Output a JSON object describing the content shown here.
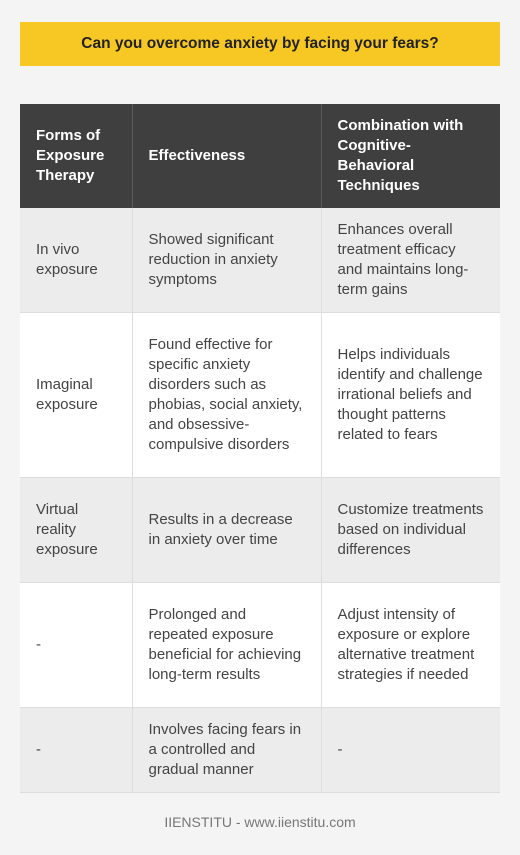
{
  "title": "Can you overcome anxiety by facing your fears?",
  "table": {
    "headers": [
      "Forms of Exposure Therapy",
      "Effectiveness",
      "Combination with Cognitive-Behavioral Techniques"
    ],
    "rows": [
      [
        "In vivo exposure",
        "Showed significant reduction in anxiety symptoms",
        "Enhances overall treatment efficacy and maintains long-term gains"
      ],
      [
        "Imaginal exposure",
        "Found effective for specific anxiety disorders such as phobias, social anxiety, and obsessive-compulsive disorders",
        "Helps individuals identify and challenge irrational beliefs and thought patterns related to fears"
      ],
      [
        "Virtual reality exposure",
        "Results in a decrease in anxiety over time",
        "Customize treatments based on individual differences"
      ],
      [
        "-",
        "Prolonged and repeated exposure beneficial for achieving long-term results",
        "Adjust intensity of exposure or explore alternative treatment strategies if needed"
      ],
      [
        "-",
        "Involves facing fears in a controlled and gradual manner",
        "-"
      ]
    ]
  },
  "footer": "IIENSTITU - www.iienstitu.com",
  "colors": {
    "accent": "#f7c824",
    "header_bg": "#3f3f3f",
    "row_alt": "#ececec",
    "row_white": "#ffffff"
  }
}
